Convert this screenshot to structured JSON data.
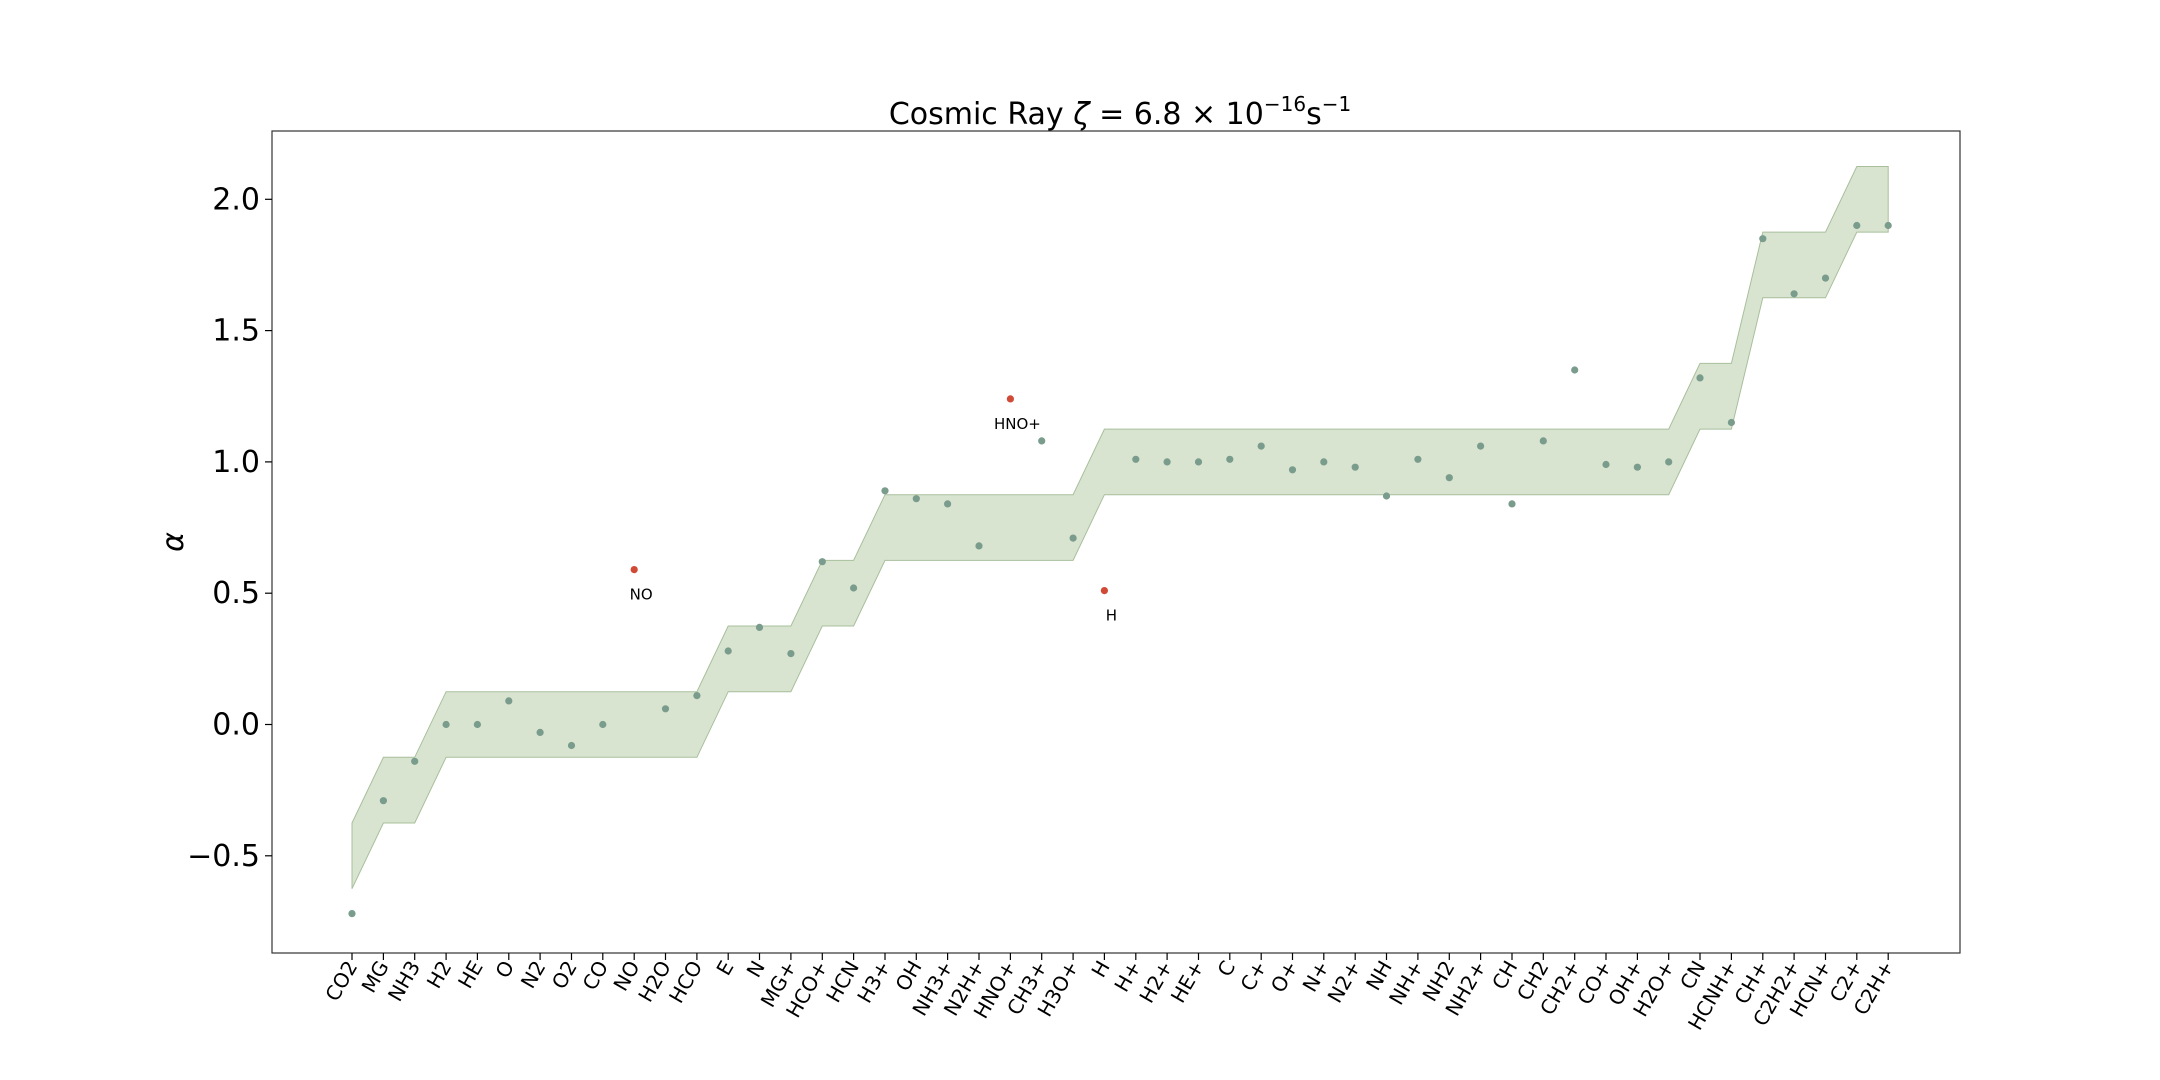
{
  "chart_data": {
    "type": "scatter",
    "title": {
      "prefix": "Cosmic Ray ",
      "symbol": "ζ",
      "equals": " = 6.8 × 10",
      "exponent": "−16",
      "unit": "s",
      "unit_exponent": "−1"
    },
    "ylabel": "α",
    "xlabel": "",
    "ylim": [
      -0.87,
      2.26
    ],
    "yticks": [
      -0.5,
      0.0,
      0.5,
      1.0,
      1.5,
      2.0
    ],
    "ytick_labels": [
      "−0.5",
      "0.0",
      "0.5",
      "1.0",
      "1.5",
      "2.0"
    ],
    "grid": false,
    "categories": [
      "CO2",
      "MG",
      "NH3",
      "H2",
      "HE",
      "O",
      "N2",
      "O2",
      "CO",
      "NO",
      "H2O",
      "HCO",
      "E",
      "N",
      "MG+",
      "HCO+",
      "HCN",
      "H3+",
      "OH",
      "NH3+",
      "N2H+",
      "HNO+",
      "CH3+",
      "H3O+",
      "H",
      "H+",
      "H2+",
      "HE+",
      "C",
      "C+",
      "O+",
      "N+",
      "N2+",
      "NH",
      "NH+",
      "NH2",
      "NH2+",
      "CH",
      "CH2",
      "CH2+",
      "CO+",
      "OH+",
      "H2O+",
      "CN",
      "HCNH+",
      "CH+",
      "C2H2+",
      "HCN+",
      "C2+",
      "C2H+"
    ],
    "values": [
      -0.72,
      -0.29,
      -0.14,
      0.0,
      0.0,
      0.09,
      -0.03,
      -0.08,
      0.0,
      0.59,
      0.06,
      0.11,
      0.28,
      0.37,
      0.27,
      0.62,
      0.52,
      0.89,
      0.86,
      0.84,
      0.68,
      1.24,
      1.08,
      0.71,
      0.51,
      1.01,
      1.0,
      1.0,
      1.01,
      1.06,
      0.97,
      1.0,
      0.98,
      0.87,
      1.01,
      0.94,
      1.06,
      0.84,
      1.08,
      1.35,
      0.99,
      0.98,
      1.0,
      1.32,
      1.15,
      1.85,
      1.64,
      1.7,
      1.9,
      1.9
    ],
    "band_center": [
      -0.5,
      -0.25,
      -0.25,
      0.0,
      0.0,
      0.0,
      0.0,
      0.0,
      0.0,
      0.0,
      0.0,
      0.0,
      0.25,
      0.25,
      0.25,
      0.5,
      0.5,
      0.75,
      0.75,
      0.75,
      0.75,
      0.75,
      0.75,
      0.75,
      1.0,
      1.0,
      1.0,
      1.0,
      1.0,
      1.0,
      1.0,
      1.0,
      1.0,
      1.0,
      1.0,
      1.0,
      1.0,
      1.0,
      1.0,
      1.0,
      1.0,
      1.0,
      1.0,
      1.25,
      1.25,
      1.75,
      1.75,
      1.75,
      2.0,
      2.0
    ],
    "band_half_width": 0.125,
    "outliers": [
      "NO",
      "HNO+",
      "H"
    ],
    "annotations": [
      {
        "species": "NO",
        "text": "NO"
      },
      {
        "species": "HNO+",
        "text": "HNO+"
      },
      {
        "species": "H",
        "text": "H"
      }
    ],
    "colors": {
      "point": "#7a9c8c",
      "outlier": "#d04a35",
      "band_fill": "#d9e4d0",
      "band_edge": "#a8bf9c"
    }
  }
}
